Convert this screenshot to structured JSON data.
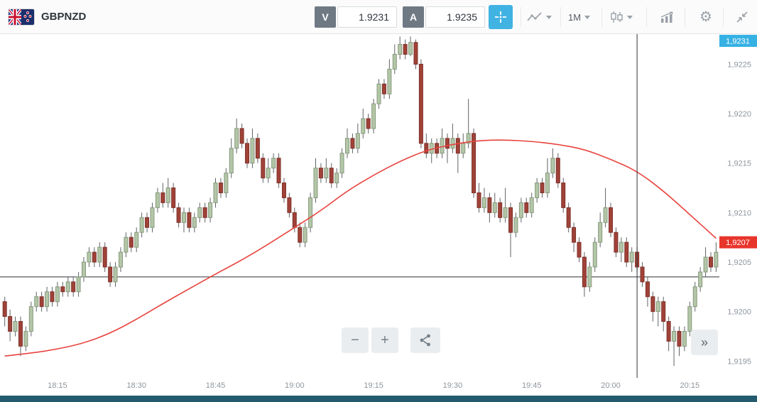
{
  "toolbar": {
    "symbol": "GBPNZD",
    "sell_label": "V",
    "sell_value": "1.9231",
    "buy_label": "A",
    "buy_value": "1.9235",
    "timeframe": "1M",
    "icons": {
      "flag": "gbp-nzd-flag",
      "crosshair": "crosshair-icon",
      "chart_type_line": "line-chart-icon",
      "chart_type_candles": "candlestick-icon",
      "indicators": "indicators-icon",
      "settings": "gear-icon",
      "collapse": "collapse-icon"
    }
  },
  "chart_controls": {
    "zoom_out_label": "−",
    "zoom_in_label": "+",
    "share_icon": "share-icon",
    "expand_label": "»"
  },
  "chart_data": {
    "type": "candlestick",
    "symbol": "GBPNZD",
    "interval": "1M",
    "start_time": "18:05",
    "price_base": 1.92,
    "unit": 0.0001,
    "price_min": 1.91938,
    "price_max": 1.92279,
    "baseline_price": 1.92035,
    "vline_minute": 120,
    "grid": "off",
    "up_color": "#b3c7a8",
    "up_border": "#87997c",
    "down_color": "#a04238",
    "down_border": "#7e322a",
    "wick_color": "#5f6367",
    "x_ticks": [
      [
        10,
        "18:15"
      ],
      [
        25,
        "18:30"
      ],
      [
        40,
        "18:45"
      ],
      [
        55,
        "19:00"
      ],
      [
        70,
        "19:15"
      ],
      [
        85,
        "19:30"
      ],
      [
        100,
        "19:45"
      ],
      [
        115,
        "20:00"
      ],
      [
        130,
        "20:15"
      ]
    ],
    "y_ticks": [
      [
        1.9225,
        "1,9225"
      ],
      [
        1.922,
        "1,9220"
      ],
      [
        1.9215,
        "1,9215"
      ],
      [
        1.921,
        "1,9210"
      ],
      [
        1.9205,
        "1,9205"
      ],
      [
        1.92,
        "1,9200"
      ],
      [
        1.9195,
        "1,9195"
      ]
    ],
    "current_price_tag": {
      "text": "1,9231",
      "color": "#36b1e4"
    },
    "last_price_tag": {
      "text": "1,9207",
      "price": 1.9207,
      "color": "#e8352b"
    },
    "ma_line": {
      "name": "moving-average",
      "color": "#e8433d",
      "points": [
        [
          0,
          -4.5
        ],
        [
          5,
          -4.2
        ],
        [
          10,
          -3.8
        ],
        [
          15,
          -3.2
        ],
        [
          20,
          -2.2
        ],
        [
          25,
          -0.8
        ],
        [
          30,
          0.8
        ],
        [
          35,
          2.3
        ],
        [
          40,
          3.8
        ],
        [
          45,
          5.2
        ],
        [
          50,
          6.8
        ],
        [
          55,
          8.5
        ],
        [
          60,
          10.2
        ],
        [
          65,
          12.2
        ],
        [
          70,
          13.8
        ],
        [
          75,
          15.2
        ],
        [
          80,
          16.3
        ],
        [
          85,
          16.9
        ],
        [
          90,
          17.3
        ],
        [
          95,
          17.35
        ],
        [
          100,
          17.2
        ],
        [
          105,
          16.9
        ],
        [
          110,
          16.4
        ],
        [
          115,
          15.4
        ],
        [
          120,
          14.2
        ],
        [
          125,
          12.2
        ],
        [
          130,
          9.8
        ],
        [
          135,
          7.4
        ]
      ]
    },
    "candles_ohlc_pips": [
      [
        1,
        1.5,
        -1.5,
        -0.5
      ],
      [
        -0.5,
        0.2,
        -3,
        -2
      ],
      [
        -2,
        -0.5,
        -2.5,
        -1
      ],
      [
        -1,
        -0.5,
        -4.5,
        -3.5
      ],
      [
        -3.5,
        -1.5,
        -4,
        -2
      ],
      [
        -2,
        1,
        -2.5,
        0.5
      ],
      [
        0.5,
        2,
        0,
        1.5
      ],
      [
        1.5,
        2,
        0,
        0.5
      ],
      [
        0.5,
        2.5,
        0,
        2
      ],
      [
        2,
        2.5,
        0.5,
        1
      ],
      [
        1,
        3,
        0.5,
        2.5
      ],
      [
        2.5,
        3,
        1.5,
        2
      ],
      [
        2,
        3.5,
        1.5,
        3
      ],
      [
        3,
        3.5,
        1.5,
        2
      ],
      [
        2,
        4,
        1.5,
        3.5
      ],
      [
        3.5,
        5.5,
        3,
        5
      ],
      [
        5,
        6.5,
        4.5,
        6
      ],
      [
        6,
        6.5,
        4.5,
        5
      ],
      [
        5,
        7,
        4.5,
        6.5
      ],
      [
        6.5,
        7,
        4,
        4.5
      ],
      [
        4.5,
        5,
        2.5,
        3
      ],
      [
        3,
        5,
        2.5,
        4.5
      ],
      [
        4.5,
        6.5,
        4,
        6
      ],
      [
        6,
        8,
        5.5,
        7.5
      ],
      [
        7.5,
        8,
        6,
        6.5
      ],
      [
        6.5,
        8.5,
        6,
        8
      ],
      [
        8,
        10,
        7.5,
        9.5
      ],
      [
        9.5,
        10,
        8,
        8.5
      ],
      [
        8.5,
        11,
        8,
        10.5
      ],
      [
        10.5,
        12.5,
        10,
        12
      ],
      [
        12,
        13,
        10.5,
        11
      ],
      [
        11,
        13.5,
        10.5,
        12.5
      ],
      [
        12.5,
        13,
        10,
        10.5
      ],
      [
        10.5,
        11,
        8.5,
        9
      ],
      [
        9,
        10.5,
        8,
        10
      ],
      [
        10,
        10.5,
        8,
        8.5
      ],
      [
        8.5,
        10,
        8,
        9.5
      ],
      [
        9.5,
        11,
        9,
        10.5
      ],
      [
        10.5,
        11,
        9,
        9.5
      ],
      [
        9.5,
        11.5,
        9,
        11
      ],
      [
        11,
        13.5,
        10.5,
        13
      ],
      [
        13,
        13.5,
        11.5,
        12
      ],
      [
        12,
        14.5,
        11.5,
        14
      ],
      [
        14,
        17.5,
        13.5,
        16.5
      ],
      [
        16.5,
        19.5,
        16,
        18.5
      ],
      [
        18.5,
        19,
        16.5,
        17
      ],
      [
        17,
        17.5,
        14.5,
        15
      ],
      [
        15,
        18.5,
        14.5,
        17.5
      ],
      [
        17.5,
        18,
        15,
        15.5
      ],
      [
        15.5,
        16,
        13,
        13.5
      ],
      [
        13.5,
        15.5,
        13,
        14.5
      ],
      [
        14.5,
        16,
        14,
        15.5
      ],
      [
        15.5,
        16,
        12.5,
        13
      ],
      [
        13,
        13.5,
        11,
        11.5
      ],
      [
        11.5,
        12,
        9.5,
        10
      ],
      [
        10,
        10.5,
        8,
        8.5
      ],
      [
        8.5,
        9,
        6.5,
        7
      ],
      [
        7,
        9,
        6.5,
        8.5
      ],
      [
        8.5,
        12,
        8,
        11.5
      ],
      [
        11.5,
        15.5,
        11,
        14.5
      ],
      [
        14.5,
        15,
        13,
        13.5
      ],
      [
        13.5,
        15.5,
        13,
        14.5
      ],
      [
        14.5,
        15,
        12.5,
        13
      ],
      [
        13,
        14.5,
        12.5,
        14
      ],
      [
        14,
        16.5,
        13.5,
        16
      ],
      [
        16,
        18.5,
        15.5,
        17.5
      ],
      [
        17.5,
        18,
        16,
        16.5
      ],
      [
        16.5,
        19,
        16,
        18
      ],
      [
        18,
        20.5,
        17.5,
        19.5
      ],
      [
        19.5,
        20,
        18,
        18.5
      ],
      [
        18.5,
        21.5,
        18,
        21
      ],
      [
        21,
        23.5,
        20.5,
        23
      ],
      [
        23,
        23.5,
        21.5,
        22
      ],
      [
        22,
        25.5,
        21.5,
        24.5
      ],
      [
        24.5,
        27,
        24,
        26
      ],
      [
        26,
        27.8,
        25.5,
        27
      ],
      [
        27,
        27.5,
        25.5,
        26
      ],
      [
        26,
        27.8,
        25.8,
        27.2
      ],
      [
        27.2,
        27.5,
        24.5,
        25
      ],
      [
        25,
        25.5,
        16.5,
        17
      ],
      [
        17,
        18,
        15.5,
        16
      ],
      [
        16,
        17.5,
        15,
        17
      ],
      [
        17,
        17.5,
        15.5,
        16
      ],
      [
        16,
        18.5,
        15.5,
        17.5
      ],
      [
        17.5,
        18,
        15,
        16.5
      ],
      [
        16.5,
        19,
        16,
        17.5
      ],
      [
        17.5,
        18,
        14,
        16
      ],
      [
        16,
        18,
        15.5,
        17
      ],
      [
        17,
        21.5,
        16.5,
        18
      ],
      [
        18,
        18.5,
        11.5,
        12
      ],
      [
        12,
        13,
        10,
        10.5
      ],
      [
        10.5,
        12.5,
        10,
        11.5
      ],
      [
        11.5,
        12,
        9,
        10
      ],
      [
        10,
        12,
        9.5,
        11
      ],
      [
        11,
        11.5,
        9,
        9.5
      ],
      [
        9.5,
        12.5,
        9,
        10.5
      ],
      [
        10.5,
        11,
        5.5,
        8
      ],
      [
        8,
        10,
        7.5,
        9.5
      ],
      [
        9.5,
        11.5,
        9,
        11
      ],
      [
        11,
        11.5,
        9.5,
        10
      ],
      [
        10,
        12,
        9.5,
        11.5
      ],
      [
        11.5,
        13.5,
        11,
        13
      ],
      [
        13,
        13.5,
        11.5,
        12
      ],
      [
        12,
        15.5,
        11.5,
        14
      ],
      [
        14,
        16.5,
        13.5,
        15.5
      ],
      [
        15.5,
        16,
        12.5,
        13
      ],
      [
        13,
        13.5,
        10,
        10.5
      ],
      [
        10.5,
        11,
        8,
        8.5
      ],
      [
        8.5,
        9,
        6,
        7
      ],
      [
        7,
        7.5,
        5,
        5.5
      ],
      [
        5.5,
        6,
        1.5,
        2.5
      ],
      [
        2.5,
        5,
        2,
        4.5
      ],
      [
        4.5,
        7.5,
        4,
        7
      ],
      [
        7,
        10,
        6.5,
        9
      ],
      [
        9,
        12.5,
        8.5,
        10.5
      ],
      [
        10.5,
        11,
        7.5,
        8
      ],
      [
        8,
        8.5,
        5.5,
        6
      ],
      [
        6,
        7.5,
        5,
        7
      ],
      [
        7,
        7.5,
        4.5,
        5
      ],
      [
        5,
        6.5,
        4,
        6
      ],
      [
        6,
        6.5,
        4,
        4.5
      ],
      [
        4.5,
        5,
        2.5,
        3
      ],
      [
        3,
        3.5,
        0.5,
        1.5
      ],
      [
        1.5,
        2,
        -1,
        0
      ],
      [
        0,
        1.5,
        -1.5,
        1
      ],
      [
        1,
        1.5,
        -2,
        -1
      ],
      [
        -1,
        -0.5,
        -4,
        -3
      ],
      [
        -3,
        -1.5,
        -5.5,
        -2
      ],
      [
        -2,
        -1.5,
        -4.5,
        -3.5
      ],
      [
        -3.5,
        -1.5,
        -4,
        -2
      ],
      [
        -2,
        1,
        -2.5,
        0.5
      ],
      [
        0.5,
        3,
        0,
        2.5
      ],
      [
        2.5,
        4.5,
        2,
        4
      ],
      [
        4,
        6.5,
        3.5,
        5.5
      ],
      [
        5.5,
        6,
        4,
        4.5
      ],
      [
        4.5,
        7,
        4,
        6
      ]
    ]
  }
}
